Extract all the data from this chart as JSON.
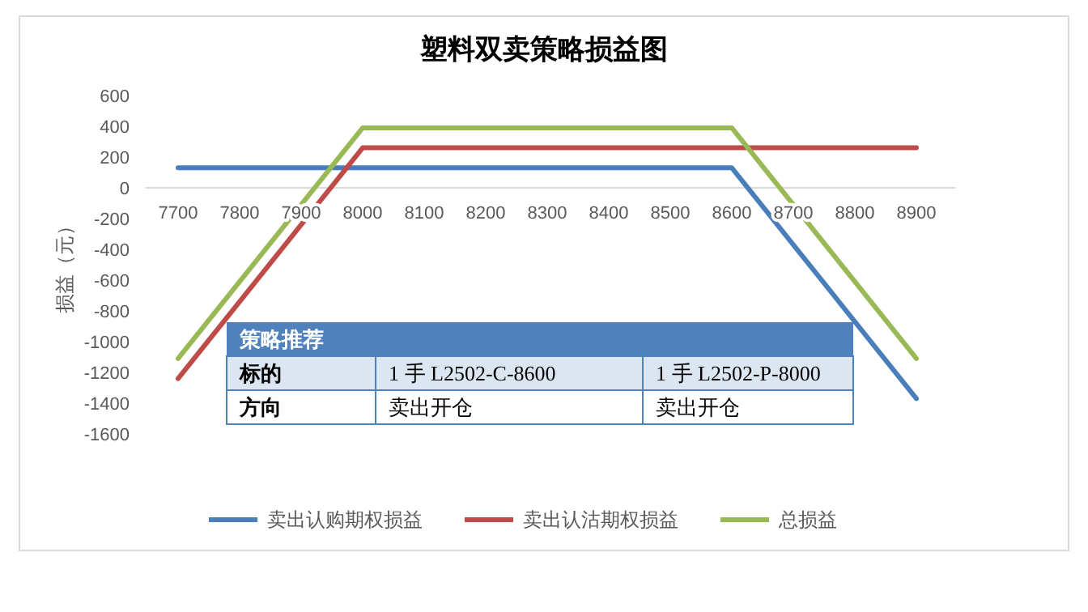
{
  "chart_data": [
    {
      "type": "line",
      "title": "塑料双卖策略损益图",
      "ylabel": "损益（元）",
      "categories": [
        "7700",
        "7800",
        "7900",
        "8000",
        "8100",
        "8200",
        "8300",
        "8400",
        "8500",
        "8600",
        "8700",
        "8800",
        "8900"
      ],
      "series": [
        {
          "name": "卖出认购期权损益",
          "color": "#4a7ebb",
          "values": [
            130,
            130,
            130,
            130,
            130,
            130,
            130,
            130,
            130,
            130,
            -370,
            -870,
            -1370
          ]
        },
        {
          "name": "卖出认沽期权损益",
          "color": "#be4b48",
          "values": [
            -1240,
            -740,
            -240,
            260,
            260,
            260,
            260,
            260,
            260,
            260,
            260,
            260,
            260
          ]
        },
        {
          "name": "总损益",
          "color": "#98b954",
          "values": [
            -1110,
            -610,
            -110,
            390,
            390,
            390,
            390,
            390,
            390,
            390,
            -110,
            -610,
            -1110
          ]
        }
      ],
      "ylim": [
        -1600,
        600
      ],
      "yticks": [
        -1600,
        -1400,
        -1200,
        -1000,
        -800,
        -600,
        -400,
        -200,
        0,
        200,
        400,
        600
      ],
      "grid": false,
      "legend": "bottom",
      "marker": "none",
      "line_style": "solid"
    },
    {
      "type": "other",
      "title": "策略推荐",
      "annotations": [
        "标的",
        "1 手 L2502-C-8600",
        "1 手 L2502-P-8000",
        "方向",
        "卖出开仓",
        "卖出开仓"
      ]
    }
  ]
}
